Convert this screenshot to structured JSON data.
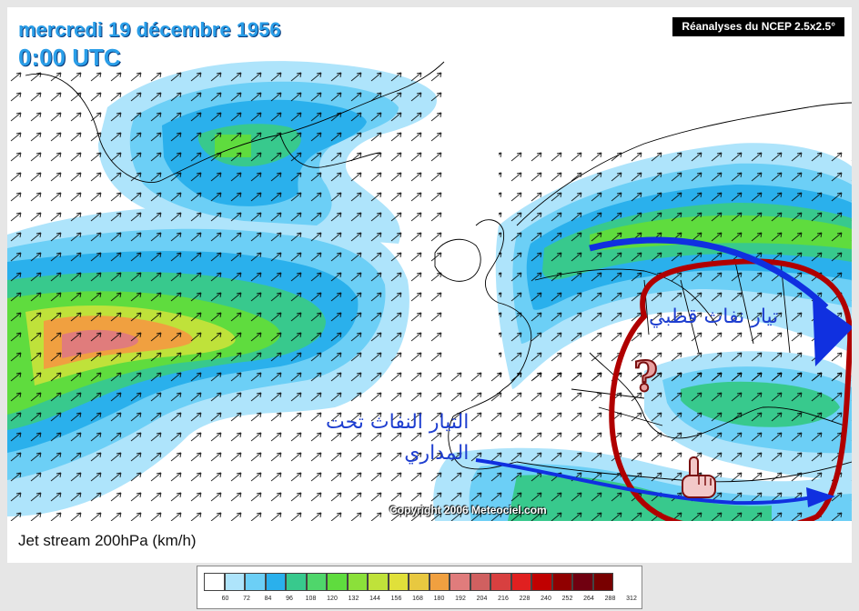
{
  "header": {
    "date": "mercredi 19 décembre 1956",
    "time": "0:00 UTC",
    "source": "Réanalyses du NCEP 2.5x2.5°"
  },
  "copyright": "Copyright 2006 Meteociel.com",
  "annotations": {
    "subtropical_jet_line1": "التيار النفاث تحت",
    "subtropical_jet_line2": "المداري",
    "polar_jet": "تيار نفاث قطبي",
    "question_mark": "?",
    "highlight_color": "#b00000",
    "arrow_color": "#1030e0"
  },
  "caption": "Jet stream 200hPa (km/h)",
  "legend": {
    "colors": [
      "#ffffff",
      "#aee4fb",
      "#6ccff6",
      "#2ab0ec",
      "#38c98d",
      "#4fd66b",
      "#5fdc3e",
      "#8be03a",
      "#bfe23a",
      "#e0e03a",
      "#e8c840",
      "#f0a040",
      "#e07c7c",
      "#d06060",
      "#d84040",
      "#e02020",
      "#c00000",
      "#900000",
      "#700010",
      "#780000"
    ],
    "ticks": [
      "60",
      "72",
      "84",
      "96",
      "108",
      "120",
      "132",
      "144",
      "156",
      "168",
      "180",
      "192",
      "204",
      "216",
      "228",
      "240",
      "252",
      "264",
      "288",
      "312"
    ]
  }
}
